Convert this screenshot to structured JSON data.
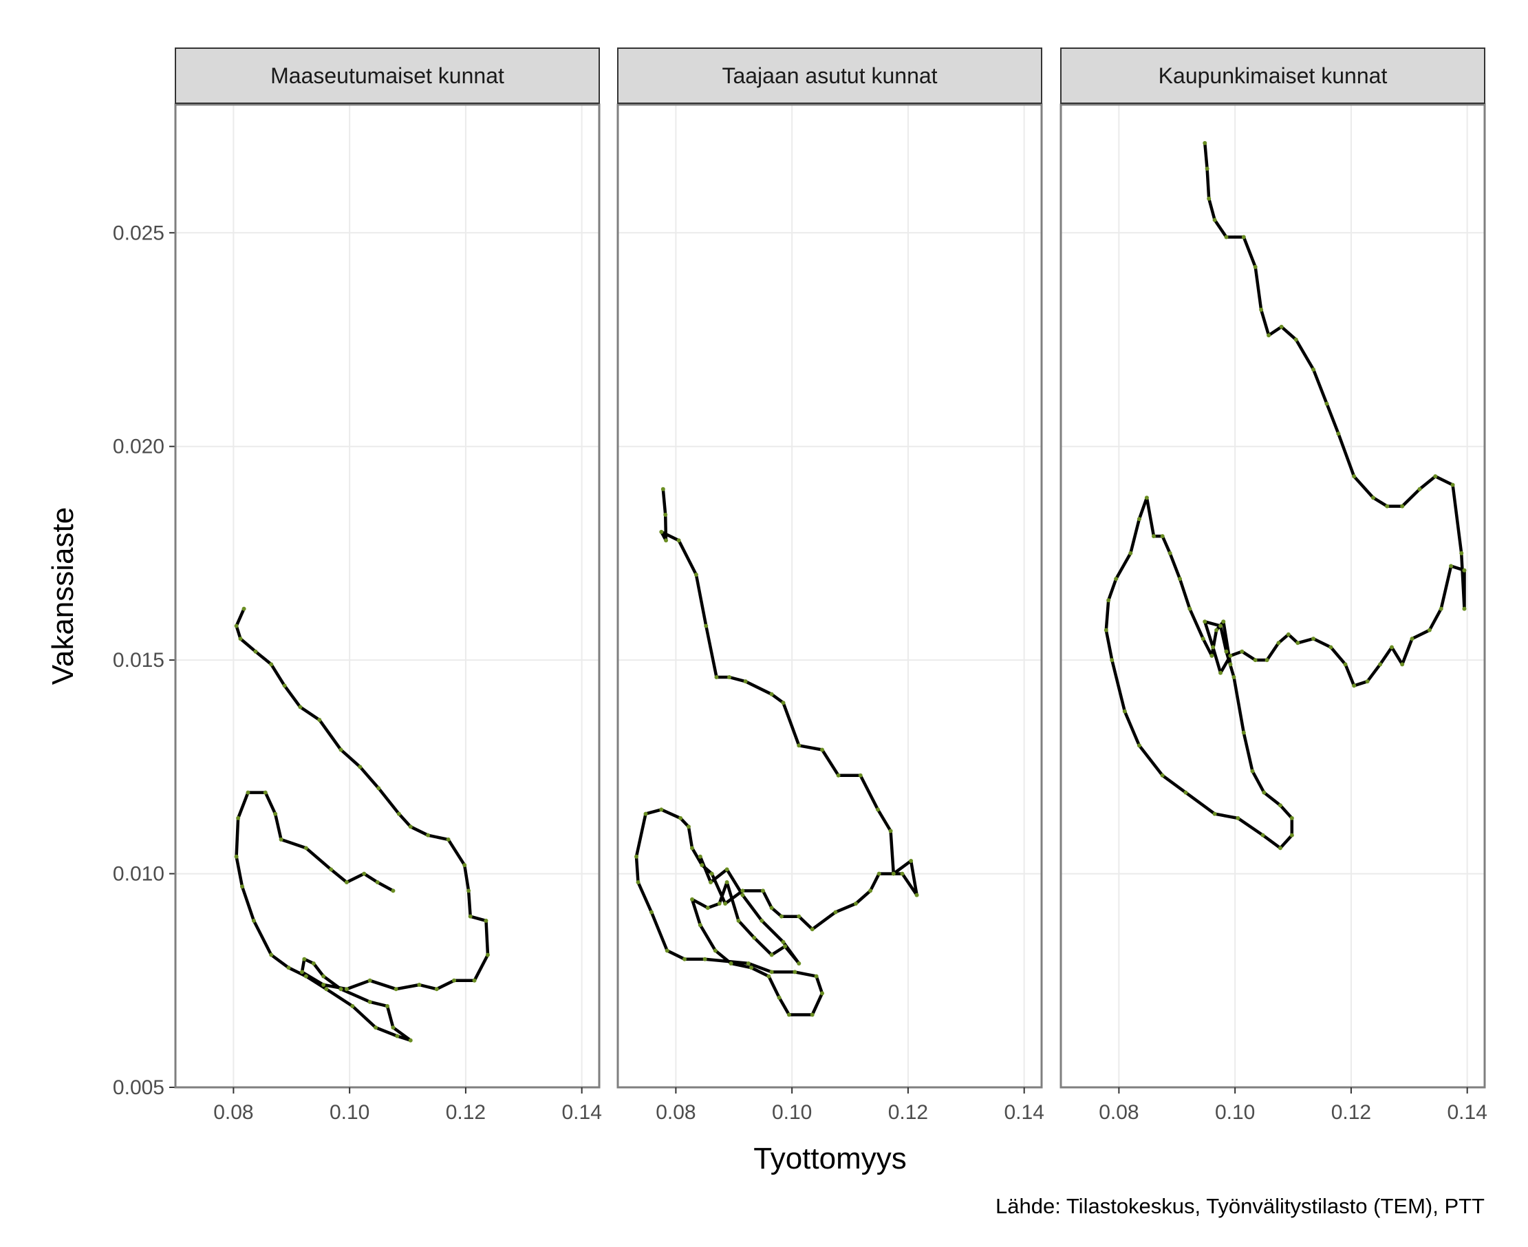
{
  "chart_data": {
    "type": "line",
    "facet_layout": "1 row × 3 columns, shared axes",
    "xlabel": "Tyottomyys",
    "ylabel": "Vakanssiaste",
    "caption": "Lähde: Tilastokeskus, Työnvälitystilasto (TEM), PTT",
    "xlim": [
      0.07,
      0.143
    ],
    "ylim": [
      0.005,
      0.028
    ],
    "x_ticks": [
      0.08,
      0.1,
      0.12,
      0.14
    ],
    "x_tick_labels": [
      "0.08",
      "0.10",
      "0.12",
      "0.14"
    ],
    "y_ticks": [
      0.005,
      0.01,
      0.015,
      0.02,
      0.025
    ],
    "y_tick_labels": [
      "0.005",
      "0.010",
      "0.015",
      "0.020",
      "0.025"
    ],
    "grid": true,
    "colors": {
      "line": "#000000",
      "points": "#6b8e23",
      "strip": "#d9d9d9"
    },
    "panels": [
      {
        "name": "Maaseutumaiset kunnat",
        "points": [
          [
            0.0818,
            0.0162
          ],
          [
            0.0805,
            0.0158
          ],
          [
            0.0812,
            0.0155
          ],
          [
            0.0838,
            0.0152
          ],
          [
            0.0865,
            0.0149
          ],
          [
            0.0888,
            0.0144
          ],
          [
            0.0915,
            0.0139
          ],
          [
            0.0948,
            0.0136
          ],
          [
            0.0985,
            0.0129
          ],
          [
            0.1018,
            0.0125
          ],
          [
            0.105,
            0.012
          ],
          [
            0.1085,
            0.0114
          ],
          [
            0.1105,
            0.0111
          ],
          [
            0.1135,
            0.0109
          ],
          [
            0.117,
            0.0108
          ],
          [
            0.1198,
            0.0102
          ],
          [
            0.1205,
            0.0096
          ],
          [
            0.1208,
            0.009
          ],
          [
            0.1235,
            0.0089
          ],
          [
            0.1238,
            0.0081
          ],
          [
            0.1215,
            0.0075
          ],
          [
            0.118,
            0.0075
          ],
          [
            0.115,
            0.0073
          ],
          [
            0.112,
            0.0074
          ],
          [
            0.108,
            0.0073
          ],
          [
            0.1035,
            0.0075
          ],
          [
            0.0995,
            0.0073
          ],
          [
            0.0955,
            0.0074
          ],
          [
            0.0918,
            0.0077
          ],
          [
            0.0922,
            0.008
          ],
          [
            0.0938,
            0.0079
          ],
          [
            0.0955,
            0.0076
          ],
          [
            0.0985,
            0.0073
          ],
          [
            0.1035,
            0.007
          ],
          [
            0.1065,
            0.0069
          ],
          [
            0.1075,
            0.0064
          ],
          [
            0.1105,
            0.0061
          ],
          [
            0.1082,
            0.0062
          ],
          [
            0.1045,
            0.0064
          ],
          [
            0.1005,
            0.0069
          ],
          [
            0.096,
            0.0073
          ],
          [
            0.0925,
            0.0076
          ],
          [
            0.0895,
            0.0078
          ],
          [
            0.0865,
            0.0081
          ],
          [
            0.0835,
            0.0089
          ],
          [
            0.0815,
            0.0097
          ],
          [
            0.0805,
            0.0104
          ],
          [
            0.0808,
            0.0113
          ],
          [
            0.0825,
            0.0119
          ],
          [
            0.0855,
            0.0119
          ],
          [
            0.0872,
            0.0114
          ],
          [
            0.0882,
            0.0108
          ],
          [
            0.0925,
            0.0106
          ],
          [
            0.0968,
            0.0101
          ],
          [
            0.0995,
            0.0098
          ],
          [
            0.1025,
            0.01
          ],
          [
            0.1048,
            0.0098
          ],
          [
            0.1075,
            0.0096
          ]
        ]
      },
      {
        "name": "Taajaan asutut kunnat",
        "points": [
          [
            0.0778,
            0.019
          ],
          [
            0.0782,
            0.0184
          ],
          [
            0.0783,
            0.0178
          ],
          [
            0.0775,
            0.018
          ],
          [
            0.0805,
            0.0178
          ],
          [
            0.0835,
            0.017
          ],
          [
            0.0852,
            0.0158
          ],
          [
            0.087,
            0.0146
          ],
          [
            0.0892,
            0.0146
          ],
          [
            0.092,
            0.0145
          ],
          [
            0.0965,
            0.0142
          ],
          [
            0.0985,
            0.014
          ],
          [
            0.1012,
            0.013
          ],
          [
            0.1052,
            0.0129
          ],
          [
            0.108,
            0.0123
          ],
          [
            0.1118,
            0.0123
          ],
          [
            0.1148,
            0.0115
          ],
          [
            0.117,
            0.011
          ],
          [
            0.1175,
            0.01
          ],
          [
            0.1205,
            0.0103
          ],
          [
            0.1215,
            0.0095
          ],
          [
            0.119,
            0.01
          ],
          [
            0.115,
            0.01
          ],
          [
            0.1135,
            0.0096
          ],
          [
            0.111,
            0.0093
          ],
          [
            0.1075,
            0.0091
          ],
          [
            0.1035,
            0.0087
          ],
          [
            0.1012,
            0.009
          ],
          [
            0.0982,
            0.009
          ],
          [
            0.0965,
            0.0092
          ],
          [
            0.095,
            0.0096
          ],
          [
            0.0915,
            0.0096
          ],
          [
            0.0885,
            0.0093
          ],
          [
            0.0862,
            0.01
          ],
          [
            0.0845,
            0.0102
          ],
          [
            0.0828,
            0.0106
          ],
          [
            0.0822,
            0.0111
          ],
          [
            0.0808,
            0.0113
          ],
          [
            0.0775,
            0.0115
          ],
          [
            0.0748,
            0.0114
          ],
          [
            0.0732,
            0.0104
          ],
          [
            0.0735,
            0.0098
          ],
          [
            0.0758,
            0.0091
          ],
          [
            0.0785,
            0.0082
          ],
          [
            0.0815,
            0.008
          ],
          [
            0.085,
            0.008
          ],
          [
            0.0925,
            0.0079
          ],
          [
            0.0965,
            0.0077
          ],
          [
            0.1005,
            0.0077
          ],
          [
            0.1042,
            0.0076
          ],
          [
            0.1052,
            0.0072
          ],
          [
            0.1035,
            0.0067
          ],
          [
            0.0995,
            0.0067
          ],
          [
            0.0978,
            0.0071
          ],
          [
            0.096,
            0.0076
          ],
          [
            0.093,
            0.0078
          ],
          [
            0.0895,
            0.0079
          ],
          [
            0.0868,
            0.0082
          ],
          [
            0.0842,
            0.0088
          ],
          [
            0.0828,
            0.0094
          ],
          [
            0.0855,
            0.0092
          ],
          [
            0.0875,
            0.0093
          ],
          [
            0.0888,
            0.0098
          ],
          [
            0.0908,
            0.0089
          ],
          [
            0.0935,
            0.0085
          ],
          [
            0.0965,
            0.0081
          ],
          [
            0.0988,
            0.0083
          ],
          [
            0.1012,
            0.0079
          ],
          [
            0.0985,
            0.0084
          ],
          [
            0.0948,
            0.0089
          ],
          [
            0.0915,
            0.0095
          ],
          [
            0.0888,
            0.0101
          ],
          [
            0.086,
            0.0098
          ],
          [
            0.0842,
            0.0104
          ]
        ]
      },
      {
        "name": "Kaupunkimaiset kunnat",
        "points": [
          [
            0.0948,
            0.0271
          ],
          [
            0.0952,
            0.0265
          ],
          [
            0.0955,
            0.0258
          ],
          [
            0.0965,
            0.0253
          ],
          [
            0.0985,
            0.0249
          ],
          [
            0.1015,
            0.0249
          ],
          [
            0.1035,
            0.0242
          ],
          [
            0.1045,
            0.0232
          ],
          [
            0.1058,
            0.0226
          ],
          [
            0.108,
            0.0228
          ],
          [
            0.1105,
            0.0225
          ],
          [
            0.1135,
            0.0218
          ],
          [
            0.1158,
            0.021
          ],
          [
            0.1178,
            0.0203
          ],
          [
            0.1205,
            0.0193
          ],
          [
            0.1238,
            0.0188
          ],
          [
            0.1262,
            0.0186
          ],
          [
            0.1288,
            0.0186
          ],
          [
            0.1318,
            0.019
          ],
          [
            0.1345,
            0.0193
          ],
          [
            0.1375,
            0.0191
          ],
          [
            0.139,
            0.0175
          ],
          [
            0.1395,
            0.0162
          ],
          [
            0.1395,
            0.0171
          ],
          [
            0.1372,
            0.0172
          ],
          [
            0.1355,
            0.0162
          ],
          [
            0.1335,
            0.0157
          ],
          [
            0.1305,
            0.0155
          ],
          [
            0.1288,
            0.0149
          ],
          [
            0.127,
            0.0153
          ],
          [
            0.125,
            0.0149
          ],
          [
            0.1228,
            0.0145
          ],
          [
            0.1205,
            0.0144
          ],
          [
            0.119,
            0.0149
          ],
          [
            0.1165,
            0.0153
          ],
          [
            0.1135,
            0.0155
          ],
          [
            0.1108,
            0.0154
          ],
          [
            0.1092,
            0.0156
          ],
          [
            0.1075,
            0.0154
          ],
          [
            0.1055,
            0.015
          ],
          [
            0.1035,
            0.015
          ],
          [
            0.1012,
            0.0152
          ],
          [
            0.0992,
            0.0151
          ],
          [
            0.0975,
            0.0147
          ],
          [
            0.0962,
            0.0153
          ],
          [
            0.0948,
            0.0159
          ],
          [
            0.0975,
            0.0158
          ],
          [
            0.0985,
            0.0152
          ],
          [
            0.0998,
            0.0146
          ],
          [
            0.1015,
            0.0133
          ],
          [
            0.103,
            0.0124
          ],
          [
            0.105,
            0.0119
          ],
          [
            0.1078,
            0.0116
          ],
          [
            0.1098,
            0.0113
          ],
          [
            0.1098,
            0.0109
          ],
          [
            0.1078,
            0.0106
          ],
          [
            0.1048,
            0.0109
          ],
          [
            0.1005,
            0.0113
          ],
          [
            0.0965,
            0.0114
          ],
          [
            0.0915,
            0.0119
          ],
          [
            0.0875,
            0.0123
          ],
          [
            0.0835,
            0.013
          ],
          [
            0.081,
            0.0138
          ],
          [
            0.0788,
            0.015
          ],
          [
            0.0778,
            0.0157
          ],
          [
            0.0782,
            0.0164
          ],
          [
            0.0795,
            0.0169
          ],
          [
            0.082,
            0.0175
          ],
          [
            0.0835,
            0.0183
          ],
          [
            0.0848,
            0.0188
          ],
          [
            0.086,
            0.0179
          ],
          [
            0.0875,
            0.0179
          ],
          [
            0.0888,
            0.0175
          ],
          [
            0.0905,
            0.0169
          ],
          [
            0.0922,
            0.0162
          ],
          [
            0.0945,
            0.0155
          ],
          [
            0.096,
            0.0151
          ],
          [
            0.0968,
            0.0157
          ],
          [
            0.098,
            0.0159
          ],
          [
            0.0992,
            0.0149
          ]
        ]
      }
    ]
  }
}
